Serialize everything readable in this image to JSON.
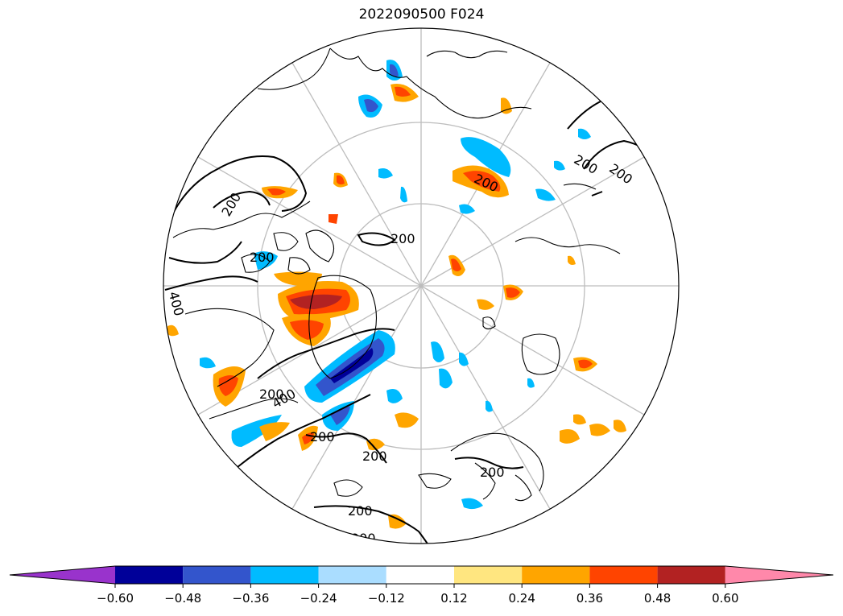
{
  "title": "2022090500 F024",
  "contour_labels": [
    "200",
    "200",
    "200",
    "200",
    "200",
    "200",
    "200",
    "200",
    "200",
    "200",
    "200",
    "200",
    "400",
    "400"
  ],
  "colorbar": {
    "colors": [
      "#9933cc",
      "#000099",
      "#3355cc",
      "#00bbff",
      "#aaddff",
      "#ffffff",
      "#ffe680",
      "#ffa500",
      "#ff4400",
      "#b22222",
      "#ff88aa"
    ],
    "ticks": [
      "−0.60",
      "−0.48",
      "−0.36",
      "−0.24",
      "−0.12",
      "0.12",
      "0.24",
      "0.36",
      "0.48",
      "0.60"
    ]
  }
}
